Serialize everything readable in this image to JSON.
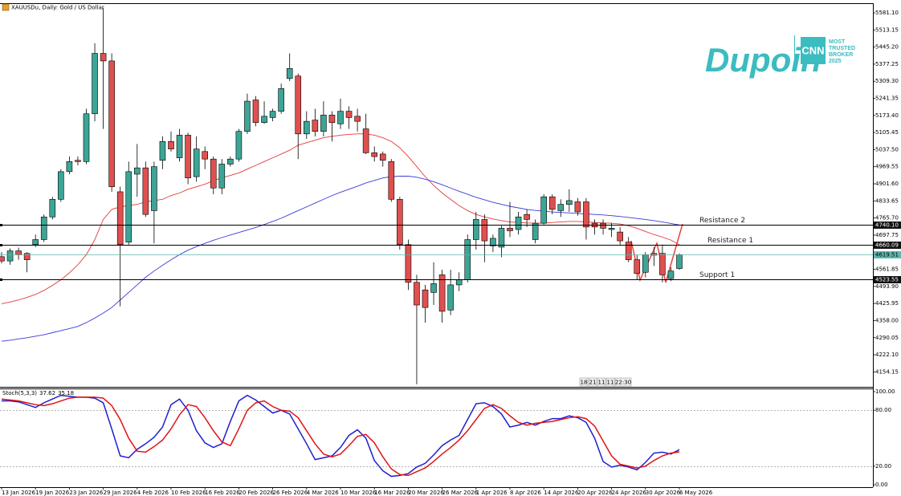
{
  "header": {
    "symbol": "XAUUSDu, Daily:  Gold / US Dollar"
  },
  "logo": {
    "brand": "Dupoin",
    "badge": "CNN",
    "tagline": [
      "MOST",
      "TRUSTED",
      "BROKER",
      "2025"
    ]
  },
  "timer": [
    "18",
    "21",
    "11",
    "11",
    "22:30"
  ],
  "chart_data": [
    {
      "type": "candlestick",
      "title": "XAUUSDu, Daily:  Gold / US Dollar",
      "categories": [
        "13 Jan 2026",
        null,
        null,
        null,
        "19 Jan 2026",
        null,
        null,
        null,
        "23 Jan 2026",
        null,
        null,
        null,
        "29 Jan 2026",
        null,
        null,
        null,
        "4 Feb 2026",
        null,
        null,
        null,
        "10 Feb 2026",
        null,
        null,
        null,
        "16 Feb 2026",
        null,
        null,
        null,
        "20 Feb 2026",
        null,
        null,
        null,
        "26 Feb 2026",
        null,
        null,
        null,
        "4 Mar 2026",
        null,
        null,
        null,
        "10 Mar 2026",
        null,
        null,
        null,
        "16 Mar 2026",
        null,
        null,
        null,
        "20 Mar 2026",
        null,
        null,
        null,
        "26 Mar 2026",
        null,
        null,
        null,
        "1 Apr 2026",
        null,
        null,
        null,
        "8 Apr 2026",
        null,
        null,
        null,
        "14 Apr 2026",
        null,
        null,
        null,
        "20 Apr 2026",
        null,
        null,
        null,
        "24 Apr 2026",
        null,
        null,
        null,
        "30 Apr 2026",
        null,
        null,
        null,
        "6 May 2026"
      ],
      "open": [
        4612,
        4595,
        4635,
        4625,
        4660,
        4680,
        4770,
        4840,
        4950,
        4995,
        4990,
        5180,
        5420,
        5390,
        4870,
        4670,
        4940,
        4965,
        4795,
        4995,
        5070,
        5005,
        5095,
        4930,
        5030,
        5000,
        4885,
        4980,
        5000,
        5110,
        5235,
        5145,
        5165,
        5190,
        5320,
        5330,
        5100,
        5155,
        5110,
        5175,
        5140,
        5190,
        5170,
        5120,
        5025,
        5020,
        4990,
        4840,
        4660,
        4510,
        4480,
        4470,
        4540,
        4400,
        4500,
        4520,
        4680,
        4760,
        4655,
        4650,
        4725,
        4720,
        4780,
        4680,
        4745,
        4850,
        4795,
        4820,
        4830,
        4830,
        4745,
        4745,
        4720,
        4710,
        4670,
        4600,
        4550,
        4625,
        4625,
        4525,
        4565
      ],
      "high": [
        4630,
        4645,
        4648,
        4630,
        4700,
        4780,
        4850,
        4960,
        5010,
        5010,
        5200,
        5460,
        5600,
        5420,
        4890,
        4990,
        5060,
        4990,
        4990,
        5090,
        5110,
        5120,
        5105,
        5090,
        5050,
        5010,
        5000,
        5010,
        5120,
        5260,
        5250,
        5230,
        5200,
        5300,
        5420,
        5340,
        5190,
        5200,
        5230,
        5190,
        5240,
        5210,
        5200,
        5180,
        5050,
        5030,
        5000,
        4850,
        4680,
        4540,
        4500,
        4590,
        4560,
        4560,
        4550,
        4700,
        4790,
        4780,
        4700,
        4735,
        4830,
        4790,
        4800,
        4760,
        4860,
        4860,
        4840,
        4880,
        4845,
        4845,
        4760,
        4760,
        4745,
        4730,
        4690,
        4620,
        4630,
        4650,
        4660,
        4570,
        4625
      ],
      "low": [
        4585,
        4580,
        4600,
        4550,
        4650,
        4670,
        4760,
        4830,
        4940,
        4975,
        4980,
        5150,
        5120,
        4870,
        4415,
        4660,
        4850,
        4770,
        4665,
        4960,
        5030,
        4990,
        4900,
        4910,
        4960,
        4860,
        4860,
        4970,
        4990,
        5100,
        5130,
        5140,
        5150,
        5180,
        5310,
        5000,
        5080,
        5090,
        5090,
        5070,
        5120,
        5120,
        5110,
        5020,
        4990,
        4970,
        4830,
        4640,
        4480,
        4105,
        4350,
        4420,
        4350,
        4380,
        4475,
        4510,
        4640,
        4590,
        4630,
        4610,
        4690,
        4700,
        4730,
        4665,
        4740,
        4780,
        4770,
        4790,
        4775,
        4680,
        4700,
        4700,
        4690,
        4660,
        4590,
        4520,
        4530,
        4575,
        4510,
        4515,
        4560
      ],
      "close": [
        4595,
        4635,
        4620,
        4600,
        4680,
        4770,
        4840,
        4950,
        4990,
        4990,
        5180,
        5420,
        5390,
        4890,
        4660,
        4950,
        4965,
        4780,
        4970,
        5070,
        5040,
        5095,
        4925,
        5040,
        5000,
        4885,
        4980,
        5000,
        5110,
        5230,
        5145,
        5170,
        5190,
        5280,
        5360,
        5100,
        5150,
        5110,
        5175,
        5145,
        5190,
        5165,
        5150,
        5025,
        5010,
        4995,
        4840,
        4660,
        4510,
        4420,
        4410,
        4505,
        4395,
        4500,
        4520,
        4680,
        4760,
        4675,
        4685,
        4725,
        4715,
        4770,
        4760,
        4745,
        4850,
        4800,
        4820,
        4835,
        4790,
        4730,
        4730,
        4725,
        4725,
        4675,
        4600,
        4545,
        4620,
        4618,
        4540,
        4555,
        4619.51
      ],
      "color_up": "#3da596",
      "color_down": "#e0504f",
      "lines": [
        {
          "color": "#e53935",
          "values": [
            4425,
            4432,
            4440,
            4450,
            4462,
            4478,
            4498,
            4520,
            4548,
            4580,
            4620,
            4680,
            4760,
            4800,
            4810,
            4815,
            4820,
            4830,
            4835,
            4840,
            4855,
            4865,
            4880,
            4890,
            4900,
            4915,
            4925,
            4935,
            4945,
            4960,
            4975,
            4990,
            5005,
            5020,
            5035,
            5055,
            5065,
            5075,
            5085,
            5090,
            5095,
            5098,
            5100,
            5100,
            5095,
            5085,
            5070,
            5045,
            5010,
            4970,
            4930,
            4895,
            4865,
            4840,
            4815,
            4795,
            4780,
            4770,
            4762,
            4755,
            4750,
            4748,
            4746,
            4745,
            4745,
            4748,
            4750,
            4752,
            4752,
            4750,
            4748,
            4746,
            4745,
            4742,
            4735,
            4725,
            4712,
            4700,
            4690,
            4678,
            4660
          ]
        },
        {
          "color": "#3b3bd6",
          "values": [
            4276,
            4280,
            4285,
            4290,
            4296,
            4302,
            4310,
            4318,
            4326,
            4335,
            4350,
            4368,
            4388,
            4410,
            4440,
            4470,
            4500,
            4530,
            4555,
            4578,
            4600,
            4620,
            4638,
            4652,
            4665,
            4677,
            4688,
            4698,
            4708,
            4718,
            4728,
            4740,
            4752,
            4765,
            4780,
            4795,
            4810,
            4825,
            4840,
            4855,
            4868,
            4880,
            4892,
            4905,
            4915,
            4925,
            4930,
            4932,
            4932,
            4928,
            4920,
            4910,
            4898,
            4885,
            4872,
            4860,
            4848,
            4838,
            4828,
            4820,
            4812,
            4806,
            4800,
            4796,
            4793,
            4790,
            4788,
            4786,
            4784,
            4782,
            4780,
            4778,
            4775,
            4772,
            4768,
            4764,
            4760,
            4755,
            4750,
            4744,
            4738
          ]
        }
      ],
      "levels": [
        {
          "name": "Resistance 2",
          "value": 4740.1,
          "label": "4740.10"
        },
        {
          "name": "Resistance 1",
          "value": 4660.09,
          "label": "4660.09"
        },
        {
          "name": "Support 1",
          "value": 4523.55,
          "label": "4523.55"
        }
      ],
      "current_price": 4619.51,
      "current_color": "#5fb7ae",
      "ylim": [
        4094.7,
        5619.4
      ],
      "yticks": [
        {
          "value": 5581.1,
          "label": "5581.10"
        },
        5513.15,
        {
          "value": 5445.2,
          "label": "5445.20"
        },
        5377.25,
        {
          "value": 5309.3,
          "label": "5309.30"
        },
        5241.35,
        {
          "value": 5173.4,
          "label": "5173.40"
        },
        5105.45,
        {
          "value": 5037.5,
          "label": "5037.50"
        },
        4969.55,
        {
          "value": 4901.6,
          "label": "4901.60"
        },
        4833.65,
        {
          "value": 4765.7,
          "label": "4765.70"
        },
        4697.75,
        4561.85,
        {
          "value": 4493.9,
          "label": "4493.90"
        },
        4425.95,
        {
          "value": 4358,
          "label": "4358.00"
        },
        4290.05,
        {
          "value": 4222.1,
          "label": "4222.10"
        },
        4154.15
      ],
      "grid": false
    },
    {
      "type": "line",
      "title": "Stoch(5,3,3)",
      "current_values": [
        37.62,
        35.18
      ],
      "series": [
        {
          "color": "#1f1fcf",
          "values": [
            90,
            90,
            89,
            86,
            83,
            88,
            92,
            96,
            95,
            94,
            94,
            93,
            88,
            60,
            31,
            29,
            38,
            44,
            51,
            62,
            86,
            92,
            80,
            58,
            45,
            40,
            44,
            68,
            90,
            96,
            91,
            84,
            77,
            80,
            76,
            60,
            44,
            27,
            29,
            31,
            40,
            53,
            59,
            50,
            26,
            15,
            9,
            10,
            12,
            19,
            23,
            32,
            42,
            48,
            53,
            70,
            87,
            88,
            84,
            76,
            62,
            64,
            67,
            64,
            68,
            71,
            71,
            74,
            72,
            67,
            50,
            25,
            19,
            21,
            19,
            16,
            24,
            34,
            35,
            33,
            37.62
          ]
        },
        {
          "color": "#e01414",
          "values": [
            92,
            91,
            90,
            88,
            86,
            85,
            87,
            90,
            93,
            94,
            94,
            94,
            93,
            85,
            70,
            50,
            36,
            35,
            41,
            48,
            60,
            75,
            86,
            84,
            72,
            58,
            46,
            42,
            60,
            80,
            88,
            90,
            84,
            80,
            79,
            72,
            58,
            44,
            33,
            30,
            33,
            42,
            52,
            54,
            45,
            30,
            17,
            11,
            10,
            14,
            18,
            25,
            33,
            40,
            48,
            58,
            70,
            82,
            86,
            82,
            74,
            67,
            64,
            66,
            67,
            68,
            70,
            72,
            73,
            71,
            63,
            47,
            31,
            22,
            20,
            18,
            20,
            26,
            31,
            34,
            35.18
          ]
        }
      ],
      "levels": [
        80,
        20
      ],
      "ylim": [
        -2.6,
        103.4
      ],
      "yticks": [
        {
          "value": 100,
          "label": "100.00"
        },
        {
          "value": 80,
          "label": "80.00"
        },
        {
          "value": 20,
          "label": "20.00"
        },
        {
          "value": 0,
          "label": "0.00"
        }
      ]
    }
  ]
}
